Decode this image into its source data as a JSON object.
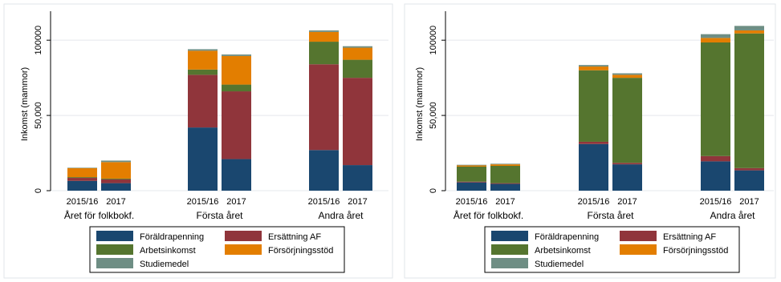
{
  "colors": {
    "Föräldrapenning": "#1a476f",
    "Ersättning AF": "#90353b",
    "Arbetsinkomst": "#55752f",
    "Försörjningsstöd": "#e37e00",
    "Studiemedel": "#6e8e84"
  },
  "legend": [
    "Föräldrapenning",
    "Ersättning AF",
    "Arbetsinkomst",
    "Försörjningsstöd",
    "Studiemedel"
  ],
  "chart_data": [
    {
      "type": "bar",
      "stacked": true,
      "ylabel": "Inkomst (mammor)",
      "ylim": [
        0,
        115000
      ],
      "yticks": [
        0,
        50000,
        100000
      ],
      "ytick_labels": [
        "0",
        "50,000",
        "100000"
      ],
      "grid": true,
      "legend_position": "bottom",
      "groups": [
        "Året för folkbokf.",
        "Första året",
        "Andra året"
      ],
      "categories": [
        "2015/16",
        "2017",
        "2015/16",
        "2017",
        "2015/16",
        "2017"
      ],
      "series": [
        {
          "name": "Föräldrapenning",
          "values": [
            6500,
            5000,
            42000,
            21000,
            27000,
            17000
          ]
        },
        {
          "name": "Ersättning AF",
          "values": [
            2000,
            2500,
            35000,
            45000,
            57000,
            58000
          ]
        },
        {
          "name": "Arbetsinkomst",
          "values": [
            500,
            500,
            3500,
            4500,
            15000,
            12000
          ]
        },
        {
          "name": "Försörjningsstöd",
          "values": [
            6000,
            11000,
            12500,
            19000,
            6500,
            8000
          ]
        },
        {
          "name": "Studiemedel",
          "values": [
            300,
            1000,
            1000,
            1000,
            1000,
            1000
          ]
        }
      ]
    },
    {
      "type": "bar",
      "stacked": true,
      "ylabel": "Inkomst (mammor)",
      "ylim": [
        0,
        115000
      ],
      "yticks": [
        0,
        50000,
        100000
      ],
      "ytick_labels": [
        "0",
        "50,000",
        "100000"
      ],
      "grid": true,
      "legend_position": "bottom",
      "groups": [
        "Året för folkbokf.",
        "Första året",
        "Andra året"
      ],
      "categories": [
        "2015/16",
        "2017",
        "2015/16",
        "2017",
        "2015/16",
        "2017"
      ],
      "series": [
        {
          "name": "Föräldrapenning",
          "values": [
            5500,
            4500,
            31000,
            17500,
            19500,
            13500
          ]
        },
        {
          "name": "Ersättning AF",
          "values": [
            500,
            500,
            1500,
            1000,
            3500,
            1500
          ]
        },
        {
          "name": "Arbetsinkomst",
          "values": [
            10000,
            11500,
            47500,
            56500,
            75500,
            89500
          ]
        },
        {
          "name": "Försörjningsstöd",
          "values": [
            800,
            1000,
            2500,
            2000,
            3000,
            2000
          ]
        },
        {
          "name": "Studiemedel",
          "values": [
            400,
            400,
            1000,
            1000,
            2500,
            3000
          ]
        }
      ]
    }
  ]
}
